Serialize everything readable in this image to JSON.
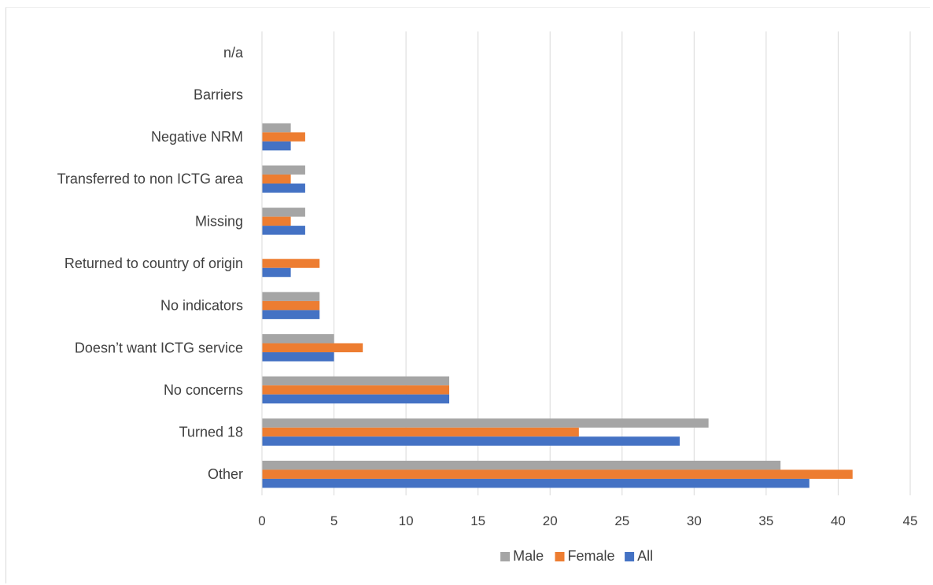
{
  "chart_data": {
    "type": "bar",
    "orientation": "horizontal",
    "categories": [
      "Other",
      "Turned 18",
      "No concerns",
      "Doesn’t want ICTG service",
      "No indicators",
      "Returned to country of origin",
      "Missing",
      "Transferred to non ICTG area",
      "Negative NRM",
      "Barriers",
      "n/a"
    ],
    "series": [
      {
        "name": "Male",
        "color": "#a5a5a5",
        "values": [
          36,
          31,
          13,
          5,
          4,
          0,
          3,
          3,
          2,
          0,
          0
        ]
      },
      {
        "name": "Female",
        "color": "#ed7d31",
        "values": [
          41,
          22,
          13,
          7,
          4,
          4,
          2,
          2,
          3,
          0,
          0
        ]
      },
      {
        "name": "All",
        "color": "#4472c4",
        "values": [
          38,
          29,
          13,
          5,
          4,
          2,
          3,
          3,
          2,
          0,
          0
        ]
      }
    ],
    "xlim": [
      0,
      45
    ],
    "xticks": [
      "0",
      "5",
      "10",
      "15",
      "20",
      "25",
      "30",
      "35",
      "40",
      "45"
    ],
    "grid": true,
    "legend": "bottom",
    "title": "",
    "xlabel": "",
    "ylabel": ""
  }
}
